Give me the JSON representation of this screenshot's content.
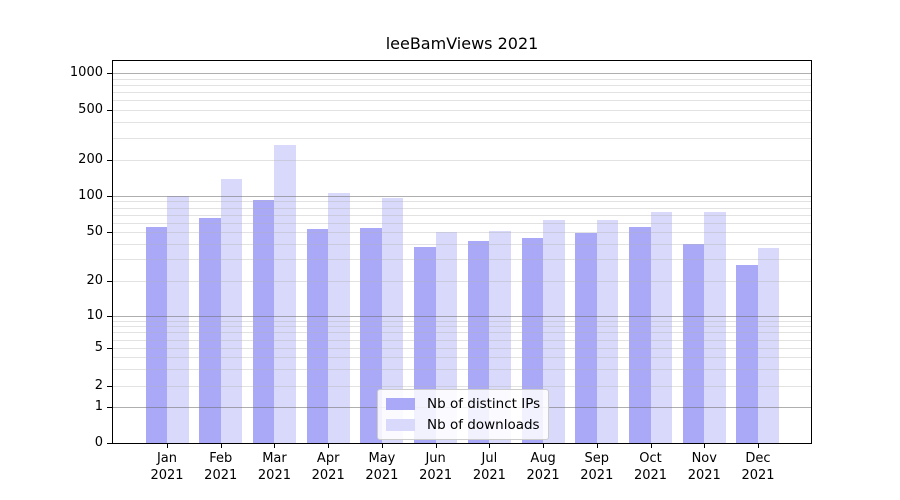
{
  "chart_data": {
    "type": "bar",
    "title": "leeBamViews 2021",
    "categories": [
      "Jan",
      "Feb",
      "Mar",
      "Apr",
      "May",
      "Jun",
      "Jul",
      "Aug",
      "Sep",
      "Oct",
      "Nov",
      "Dec"
    ],
    "category_sublabel": "2021",
    "series": [
      {
        "name": "Nb of distinct IPs",
        "color": "#a9a9f8",
        "values": [
          55,
          65,
          92,
          53,
          54,
          38,
          42,
          45,
          49,
          55,
          40,
          27
        ]
      },
      {
        "name": "Nb of downloads",
        "color": "#d9d9fb",
        "values": [
          100,
          140,
          265,
          106,
          96,
          50,
          51,
          63,
          63,
          73,
          74,
          37
        ]
      }
    ],
    "y_axis": {
      "scale": "symlog",
      "tick_labels": [
        "0",
        "1",
        "2",
        "5",
        "10",
        "20",
        "50",
        "100",
        "200",
        "500",
        "1000"
      ],
      "tick_values": [
        0,
        1,
        2,
        5,
        10,
        20,
        50,
        100,
        200,
        500,
        1000
      ],
      "major_grid_values": [
        1,
        10,
        100,
        1000
      ],
      "minor_grid_mantissas": [
        2,
        3,
        4,
        5,
        6,
        7,
        8,
        9
      ],
      "ylim": [
        0,
        1260
      ],
      "grid": true
    },
    "legend": {
      "position": "lower center",
      "entries": [
        "Nb of distinct IPs",
        "Nb of downloads"
      ]
    }
  }
}
